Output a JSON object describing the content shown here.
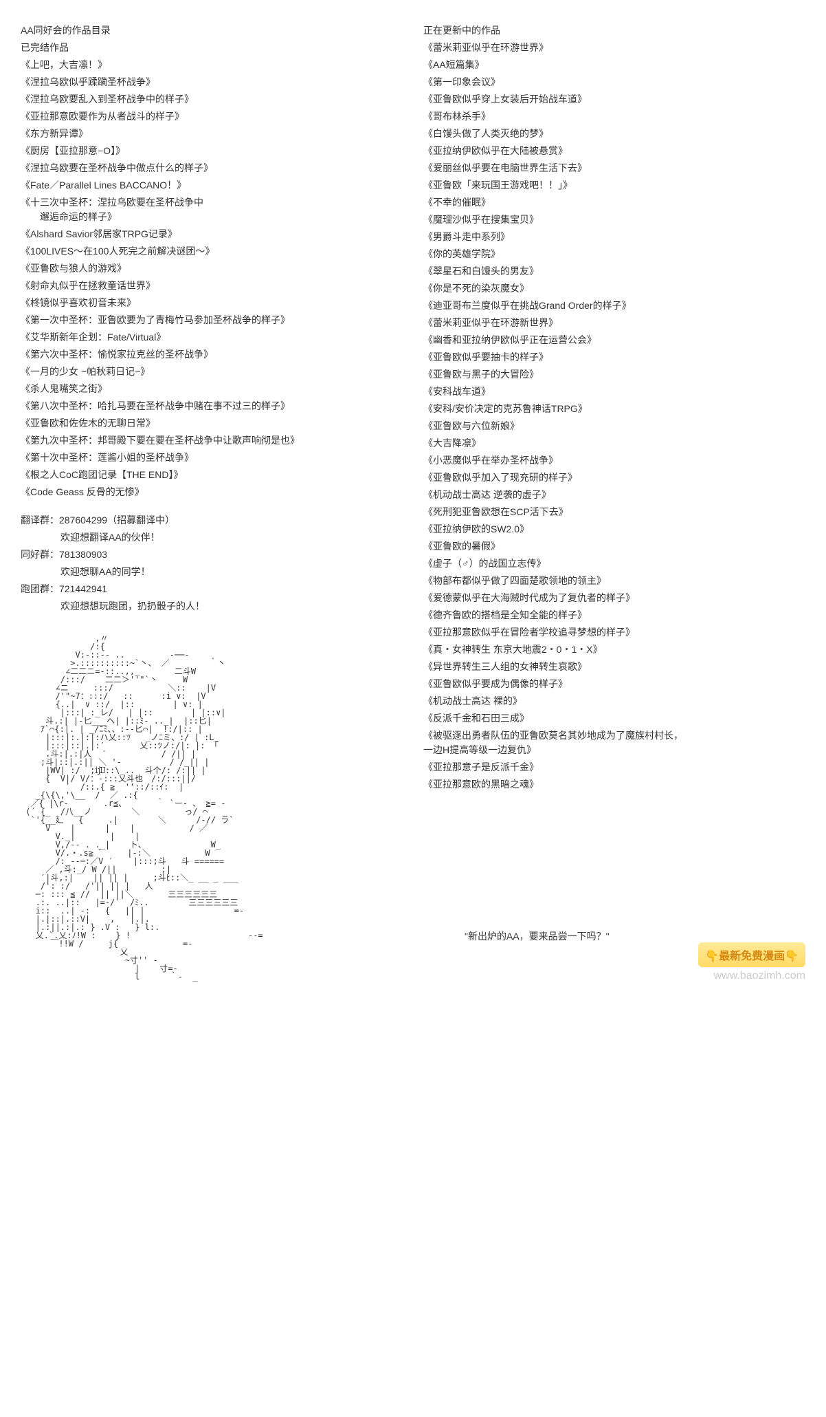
{
  "left": {
    "title": "AA同好会的作品目录",
    "subtitle": "已完结作品",
    "items": [
      "《上吧，大吉凛！》",
      "《涅拉乌欧似乎蹂躏圣杯战争》",
      "《涅拉乌欧要乱入到圣杯战争中的样子》",
      "《亚拉那意欧要作为从者战斗的样子》",
      "《东方新异谭》",
      "《厨房【亚拉那意−O】》",
      "《涅拉乌欧要在圣杯战争中做点什么的样子》",
      "《Fate／Parallel Lines BACCANO！》",
      "《十三次中圣杯：涅拉乌欧要在圣杯战争中\n　　邂逅命运的样子》",
      "《Alshard Savior邻居家TRPG记录》",
      "《100LIVES～在100人死完之前解决谜团～》",
      "《亚鲁欧与狼人的游戏》",
      "《射命丸似乎在拯救童话世界》",
      "《柊镜似乎喜欢初音未来》",
      "《第一次中圣杯：亚鲁欧要为了青梅竹马参加圣杯战争的样子》",
      "《艾华斯新年企划：Fate/Virtual》",
      "《第六次中圣杯：愉悦家拉克丝的圣杯战争》",
      "《一月的少女 ~帕秋莉日记~》",
      "《杀人鬼嘴笑之街》",
      "《第八次中圣杯：哈扎马要在圣杯战争中赌在事不过三的样子》",
      "《亚鲁欧和佐佐木的无聊日常》",
      "《第九次中圣杯：邦哥殿下要在要在圣杯战争中让歌声响彻是也》",
      "《第十次中圣杯：莲酱小姐的圣杯战争》",
      "《根之人CoC跑团记录【THE END】》",
      "《Code Geass 反骨的无惨》"
    ],
    "groups": [
      {
        "label": "翻译群：287604299（招募翻译中）",
        "sub": "欢迎想翻译AA的伙伴！"
      },
      {
        "label": "同好群：781380903",
        "sub": "欢迎想聊AA的同学！"
      },
      {
        "label": "跑团群：721442941",
        "sub": "欢迎想想玩跑团，扔扔骰子的人！"
      }
    ]
  },
  "right": {
    "title": "正在更新中的作品",
    "items": [
      "《蕾米莉亚似乎在环游世界》",
      "《AA短篇集》",
      "《第一印象会议》",
      "《亚鲁欧似乎穿上女装后开始战车道》",
      "《哥布林杀手》",
      "《白馒头做了人类灭绝的梦》",
      "《亚拉纳伊欧似乎在大陆被悬赏》",
      "《爱丽丝似乎要在电脑世界生活下去》",
      "《亚鲁欧「来玩国王游戏吧！！」》",
      "《不幸的催眠》",
      "《魔理沙似乎在搜集宝贝》",
      "《男爵斗走中系列》",
      "《你的英雄学院》",
      "《翠星石和白馒头的男友》",
      "《你是不死的染灰魔女》",
      "《迪亚哥布兰度似乎在挑战Grand Order的样子》",
      "《蕾米莉亚似乎在环游新世界》",
      "《幽香和亚拉纳伊欧似乎正在运营公会》",
      "《亚鲁欧似乎要抽卡的样子》",
      "《亚鲁欧与黑子的大冒险》",
      "《安科战车道》",
      "《安科/安价决定的克苏鲁神话TRPG》",
      "《亚鲁欧与六位新娘》",
      "《大吉降凛》",
      "《小恶魔似乎在举办圣杯战争》",
      "《亚鲁欧似乎加入了现充研的样子》",
      "《机动战士高达 逆袭的虚子》",
      "《死刑犯亚鲁欧想在SCP活下去》",
      "《亚拉纳伊欧的SW2.0》",
      "《亚鲁欧的暑假》",
      "《虚子（♂）的战国立志传》",
      "《物部布都似乎做了四面楚歌领地的领主》",
      "《爱德蒙似乎在大海贼时代成为了复仇者的样子》",
      "《德齐鲁欧的搭档是全知全能的样子》",
      "《亚拉那意欧似乎在冒险者学校追寻梦想的样子》",
      "《真・女神转生 东京大地震2・0・1・X》",
      "《异世界转生三人组的女神转生哀歌》",
      "《亚鲁欧似乎要成为偶像的样子》",
      "《机动战士高达 裸的》",
      "《反派千金和石田三成》",
      "《被驱逐出勇者队伍的亚鲁欧莫名其妙地成为了魔族村村长，\n一边H提高等级一边复仇》",
      "《亚拉那意子是反派千金》",
      "《亚拉那意欧的黑暗之魂》"
    ],
    "quote": "\"新出炉的AA，要来品尝一下吗？\""
  },
  "ascii_art": "               ,〃\n              /:{\n           V:-::‐- ..         -──-\n          >.::::::::::~`丶、 ／        ｀丶\n         ∠二二ニ=-::..,,_       二斗W\n        /:::/    二二＞''\"`丶     W\n       ∠ニ     :::/           ＼::    |V\n       /'\"~7：:::/   ::　    :i ∨:  |V\n       {..|  ∨ ::/  |::　      | ∨: |\n        |:::| :_レ/   | |::　      | |::∨|\n     斗.:| |-匕___ヘ| |::ﾐ- .._|  |::匕|\n    ｱ`⌒{:|. | _/ﾆﾐ、、:--匕⌒|  !:/|:: |\n     |:::|:.|:|:ハ乂::ﾂ   _ノﾆミ、:/ | :L_\n     |:::|::|.|:′       乂::ﾂノ:/|: |: 「\n     .斗:|.:|人  ′           / /|| |\n    ;斗|::|.:|| ＼ '- 　       / /_|| |\n     |WV| :/  ;ĳĲ::\\_..  斗个/: /:|| |\n     {  V|/ V/：-:::乂斗也　/:/:::||/\n         ′  /::.{ ≧  '‘::/::ｲ:  |\n   _{\\{\\,'\\__  /  ／ .:{\n  ／{ |\\r-       .r≦、      ｀ `ー- 、 ≧= -\n (´ {_  /八__ノ        ＼         っ/ ⌒\n  `'{__廴   {     .|        ＼      /-// ラ`\n     V    |      |    |           / ／\n       V._|       |    |\n       V,/‐- . ._|    ト、             W_\n       V/.・.s≧ ﾞ     |-:＼           W\n       /:_--─:／V ′    |:::;斗   斗 ======\n     ／ ,斗:_/ W /||         ;|\n    ′|斗,:|    || || |     ;斗ﾋ::＼_ __ _ ___\n    /': :/   /'|| || |   人\n   ─: ::: ≦ //  || ||＼       三三三三三三\n   .:. ..|::   |=-/′  /ﾐ..        三三三三三三\n   i::  ..| -:   {   || |                  =-\n   |.|::|.::V|    ,   |.|.\n   |.:||.:|.: } .V :   } l:.\n   乂.`.乂:ﾉ!W :    } !　                      -‐=\n      ￣!!W /     j{             =-\n                    乂\n                     ~寸'' -\n                       |    寸=-\n                       l      ｀-  _",
  "watermark": {
    "badge": "👇最新免费漫画👇",
    "url": "www.baozimh.com"
  }
}
